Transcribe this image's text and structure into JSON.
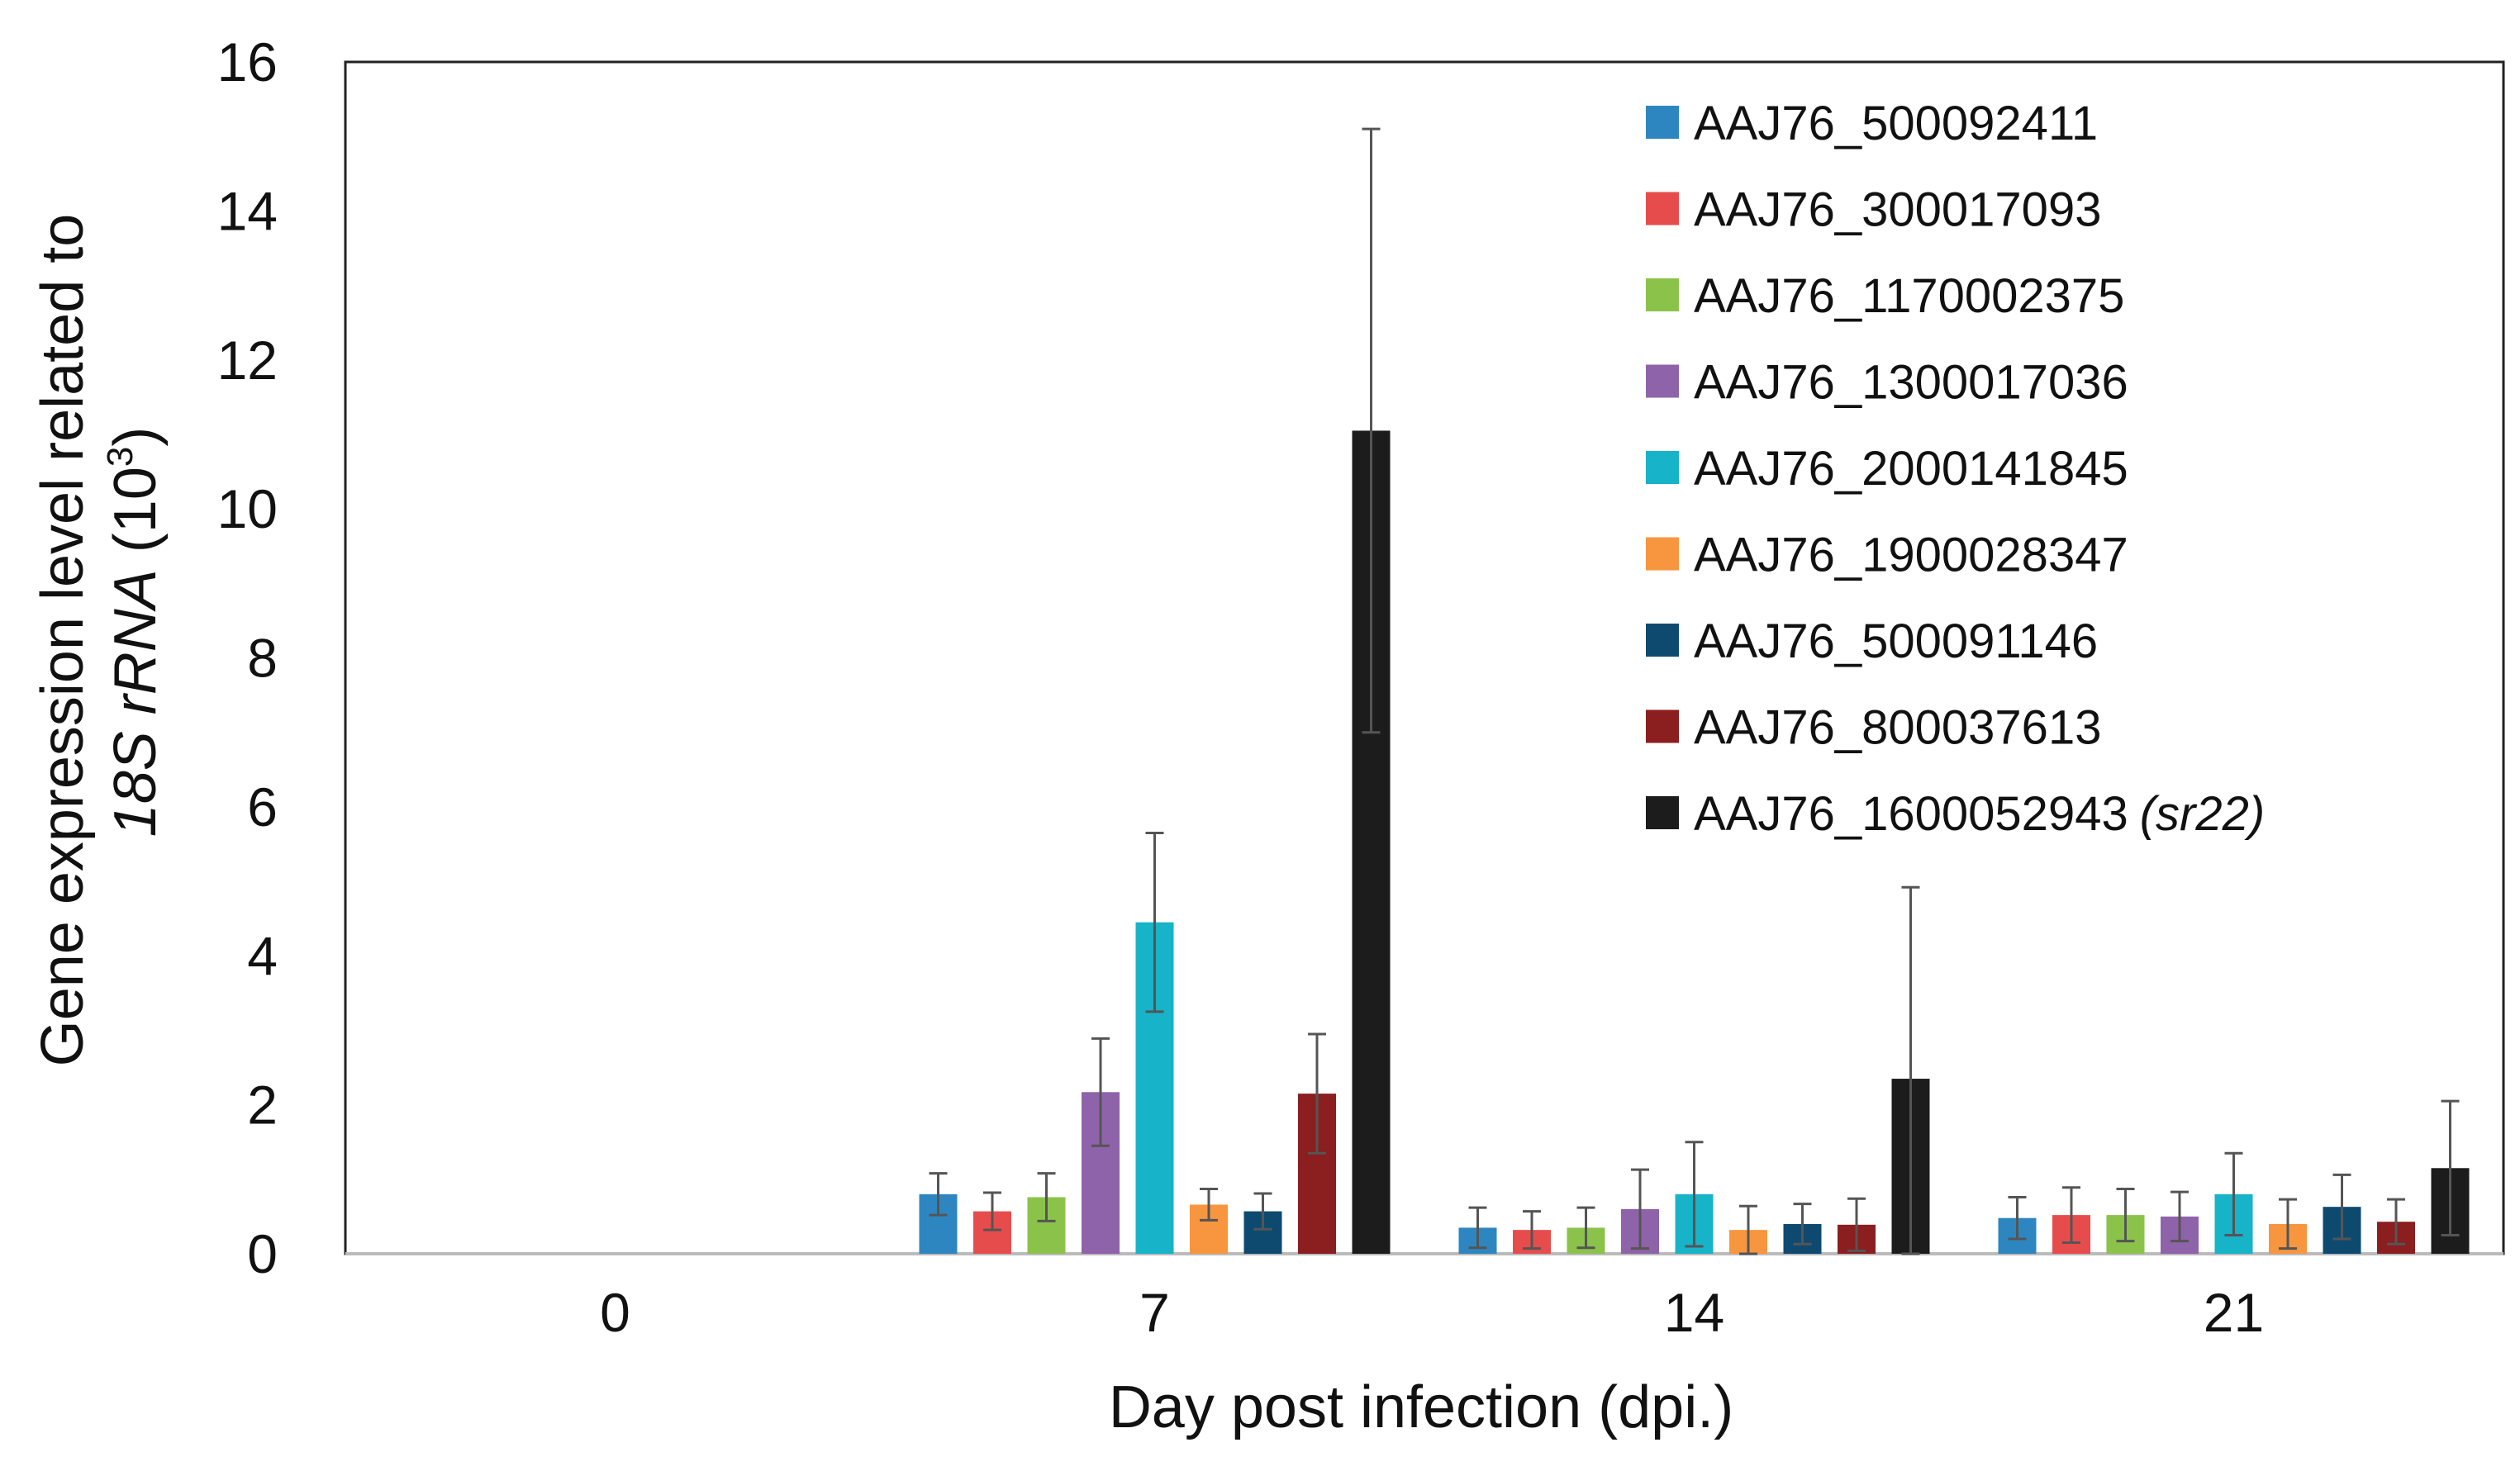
{
  "chart_data": {
    "type": "bar",
    "title": "",
    "xlabel": "Day post infection (dpi.)",
    "ylabel": {
      "prefix": "Gene expression level related to",
      "gene": "18S rRNA",
      "unit_open": "(10",
      "unit_exp": "3",
      "unit_close": ")"
    },
    "ylim": [
      0,
      16
    ],
    "yticks": [
      "0",
      "2",
      "4",
      "6",
      "8",
      "10",
      "12",
      "14",
      "16"
    ],
    "grid": false,
    "legend_position": "top-right",
    "categories": [
      "0",
      "7",
      "14",
      "21"
    ],
    "series": [
      {
        "name": "AAJ76_500092411",
        "color": "#2E86C1",
        "values": [
          0,
          0.8,
          0.35,
          0.48
        ],
        "errors": [
          0,
          0.28,
          0.27,
          0.28
        ]
      },
      {
        "name": "AAJ76_300017093",
        "color": "#E74C4C",
        "values": [
          0,
          0.57,
          0.32,
          0.52
        ],
        "errors": [
          0,
          0.25,
          0.25,
          0.37
        ]
      },
      {
        "name": "AAJ76_1170002375",
        "color": "#8BC34A",
        "values": [
          0,
          0.76,
          0.35,
          0.52
        ],
        "errors": [
          0,
          0.32,
          0.27,
          0.35
        ]
      },
      {
        "name": "AAJ76_1300017036",
        "color": "#8E63A9",
        "values": [
          0,
          2.17,
          0.6,
          0.5
        ],
        "errors": [
          0,
          0.72,
          0.53,
          0.33
        ]
      },
      {
        "name": "AAJ76_2000141845",
        "color": "#17B3C9",
        "values": [
          0,
          4.45,
          0.8,
          0.8
        ],
        "errors": [
          0,
          1.2,
          0.7,
          0.55
        ]
      },
      {
        "name": "AAJ76_1900028347",
        "color": "#F7963F",
        "values": [
          0,
          0.66,
          0.32,
          0.4
        ],
        "errors": [
          0,
          0.21,
          0.32,
          0.33
        ]
      },
      {
        "name": "AAJ76_500091146",
        "color": "#0E4A70",
        "values": [
          0,
          0.57,
          0.4,
          0.63
        ],
        "errors": [
          0,
          0.24,
          0.27,
          0.43
        ]
      },
      {
        "name": "AAJ76_800037613",
        "color": "#8B1E1E",
        "values": [
          0,
          2.15,
          0.39,
          0.43
        ],
        "errors": [
          0,
          0.8,
          0.35,
          0.3
        ]
      },
      {
        "name": "AAJ76_1600052943",
        "name_suffix": "(sr22)",
        "color": "#1C1C1C",
        "values": [
          0,
          11.05,
          2.35,
          1.15
        ],
        "errors": [
          0,
          4.05,
          2.57,
          0.9
        ]
      }
    ]
  }
}
